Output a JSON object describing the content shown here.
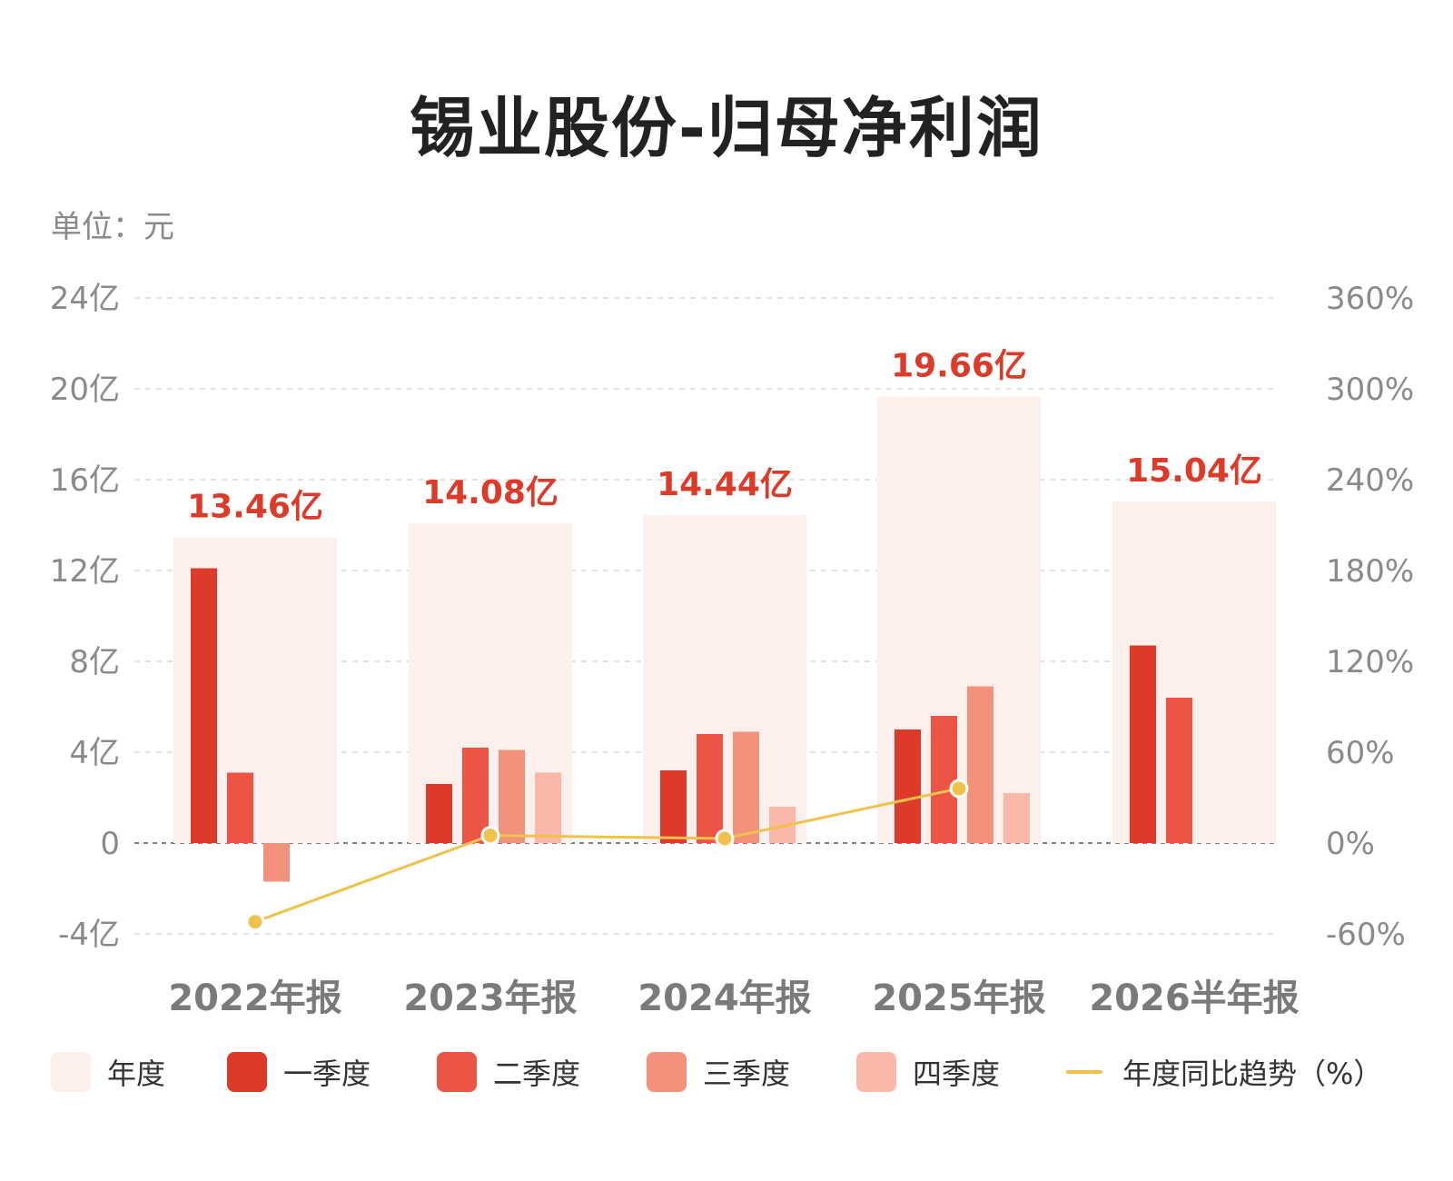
{
  "title": "锡业股份-归母净利润",
  "unit_label": "单位：元",
  "colors": {
    "annual": "#fdf0ec",
    "q1": "#dd3b29",
    "q2": "#ec5445",
    "q3": "#f2927c",
    "q4": "#fbb7a8",
    "yoy": "#f0c24b",
    "value_label": "#dd3b29",
    "axis_text": "#8a8a8a"
  },
  "legend": [
    {
      "key": "annual",
      "label": "年度",
      "kind": "swatch"
    },
    {
      "key": "q1",
      "label": "一季度",
      "kind": "swatch"
    },
    {
      "key": "q2",
      "label": "二季度",
      "kind": "swatch"
    },
    {
      "key": "q3",
      "label": "三季度",
      "kind": "swatch"
    },
    {
      "key": "q4",
      "label": "四季度",
      "kind": "swatch"
    },
    {
      "key": "yoy",
      "label": "年度同比趋势（%）",
      "kind": "line"
    }
  ],
  "chart_data": {
    "type": "bar",
    "categories": [
      "2022年报",
      "2023年报",
      "2024年报",
      "2025年报",
      "2026半年报"
    ],
    "y_left": {
      "min": -4,
      "max": 24,
      "ticks": [
        -4,
        0,
        4,
        8,
        12,
        16,
        20,
        24
      ],
      "tick_labels": [
        "-4亿",
        "0",
        "4亿",
        "8亿",
        "12亿",
        "16亿",
        "20亿",
        "24亿"
      ]
    },
    "y_right": {
      "min": -60,
      "max": 360,
      "ticks": [
        -60,
        0,
        60,
        120,
        180,
        240,
        300,
        360
      ],
      "tick_labels": [
        "-60%",
        "0%",
        "60%",
        "120%",
        "180%",
        "240%",
        "300%",
        "360%"
      ]
    },
    "annual": {
      "values": [
        13.46,
        14.08,
        14.44,
        19.66,
        15.04
      ],
      "labels": [
        "13.46亿",
        "14.08亿",
        "14.44亿",
        "19.66亿",
        "15.04亿"
      ]
    },
    "quarters": [
      {
        "key": "q1",
        "values": [
          12.1,
          2.6,
          3.2,
          5.0,
          8.7
        ]
      },
      {
        "key": "q2",
        "values": [
          3.1,
          4.2,
          4.8,
          5.6,
          6.4
        ]
      },
      {
        "key": "q3",
        "values": [
          -1.7,
          4.1,
          4.9,
          6.9,
          null
        ]
      },
      {
        "key": "q4",
        "values": [
          null,
          3.1,
          1.6,
          2.2,
          null
        ]
      }
    ],
    "yoy": {
      "values": [
        -52,
        5,
        3,
        36,
        null
      ]
    },
    "grid": true
  }
}
